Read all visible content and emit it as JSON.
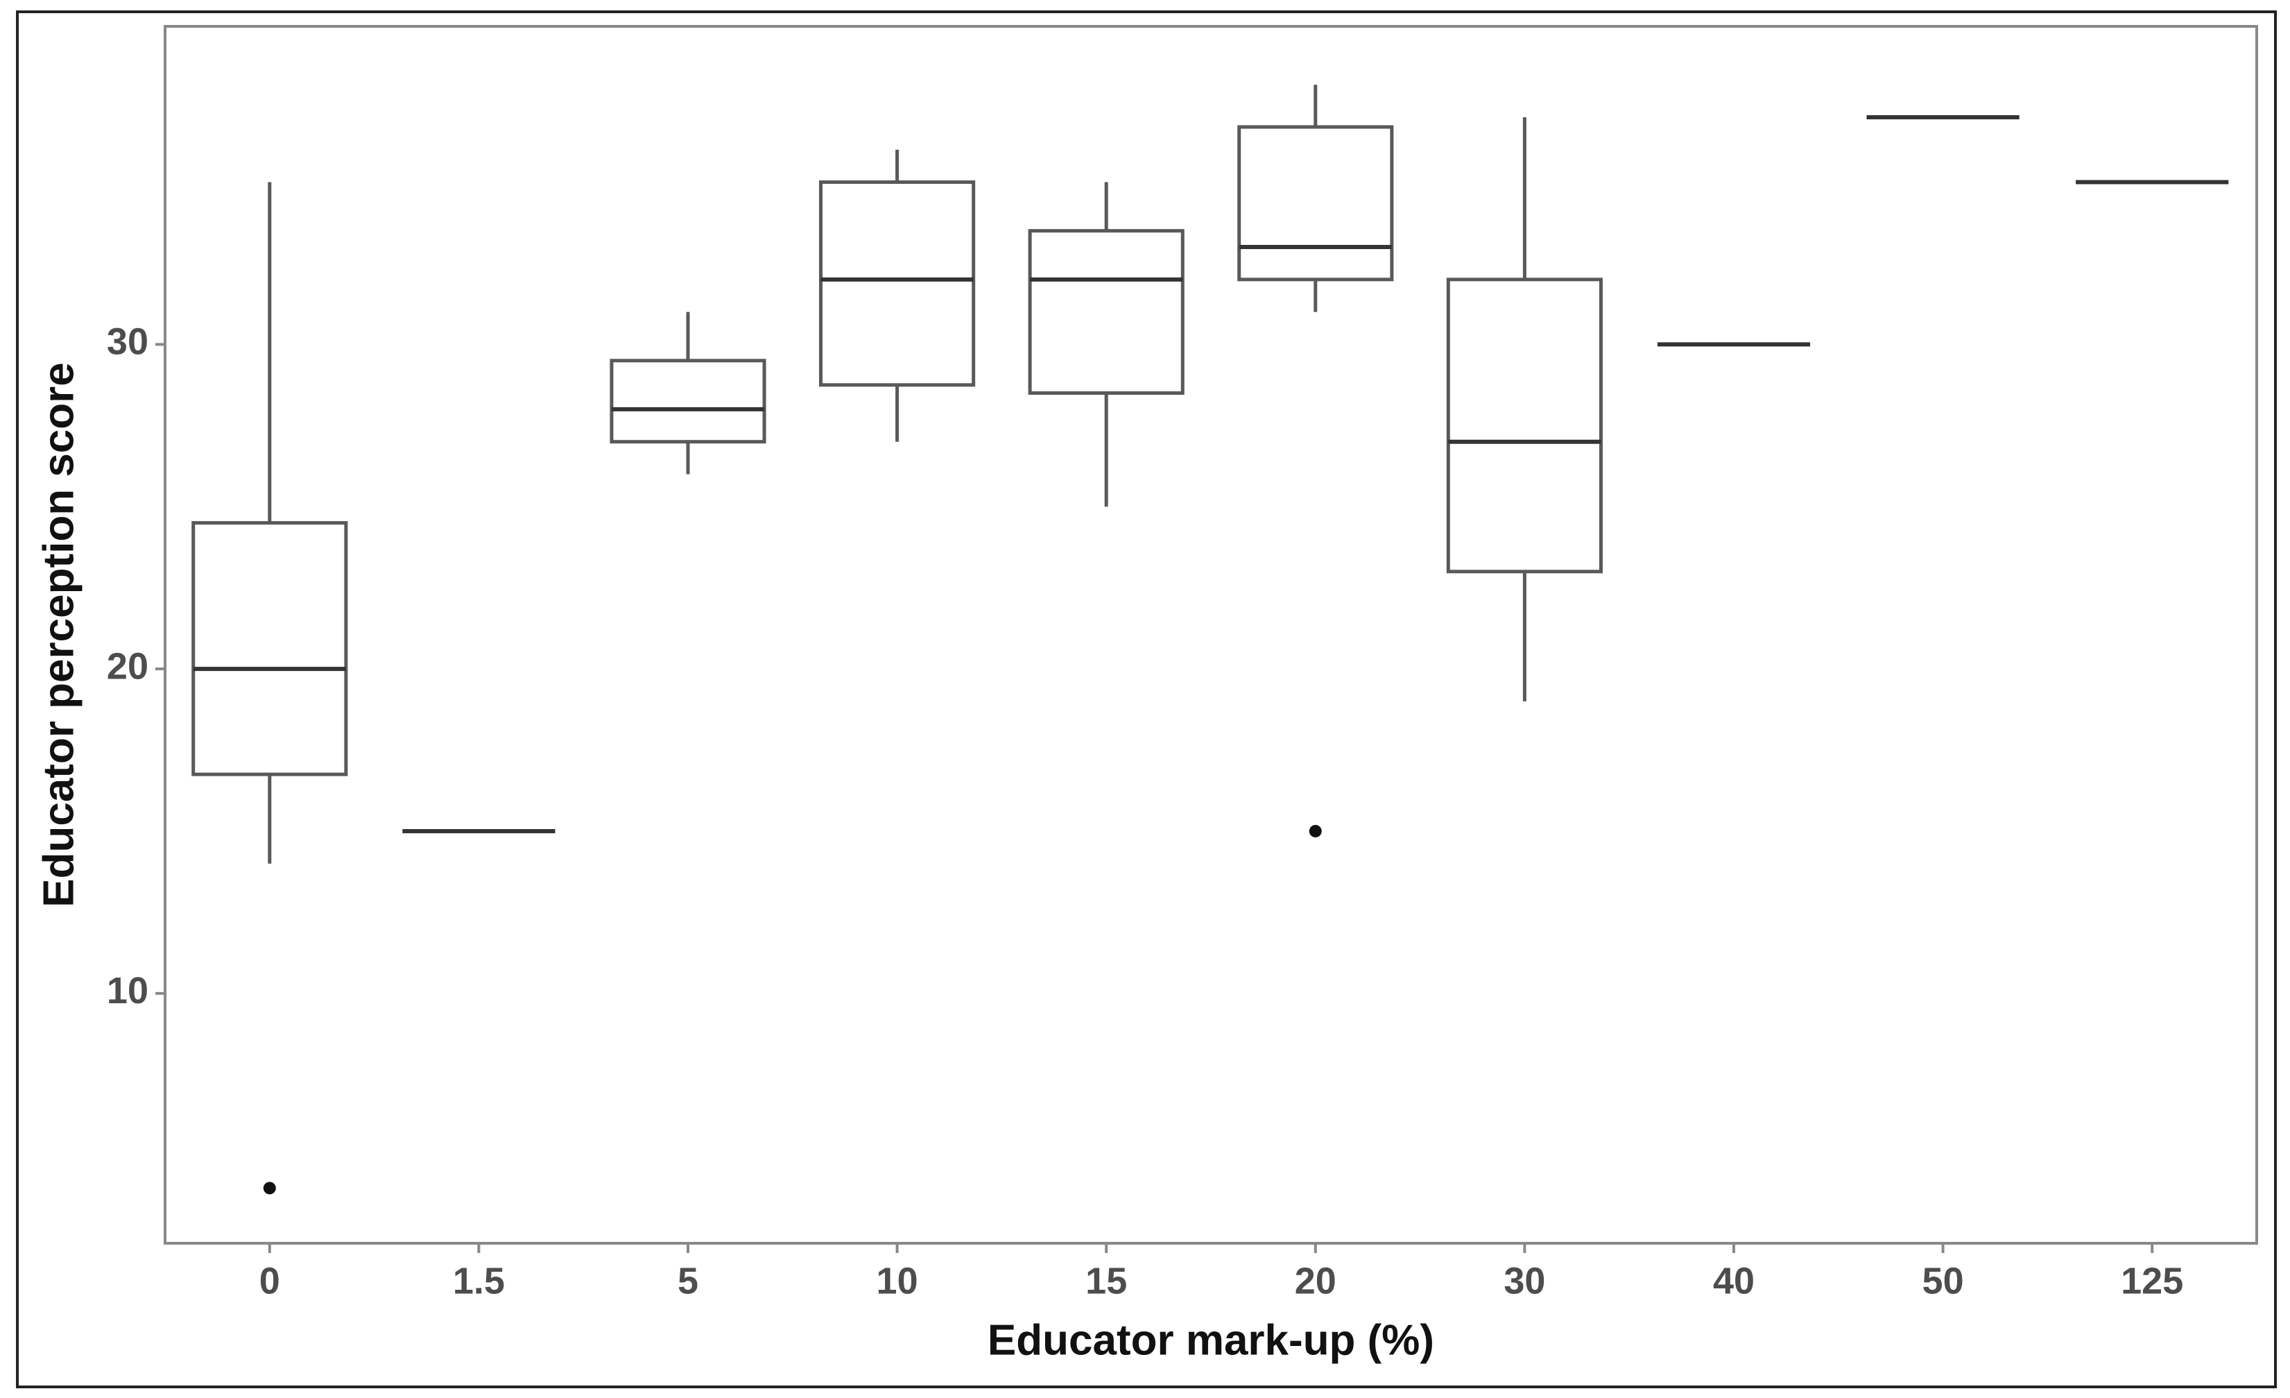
{
  "chart_data": {
    "type": "boxplot",
    "x_label": "Educator mark-up (%)",
    "y_label": "Educator perception score",
    "categories": [
      "0",
      "1.5",
      "5",
      "10",
      "15",
      "20",
      "30",
      "40",
      "50",
      "125"
    ],
    "boxes": [
      {
        "min": 14,
        "q1": 16.75,
        "median": 20,
        "q3": 24.5,
        "max": 35,
        "outliers": [
          4
        ]
      },
      {
        "min": 15,
        "q1": 15,
        "median": 15,
        "q3": 15,
        "max": 15,
        "outliers": []
      },
      {
        "min": 26,
        "q1": 27,
        "median": 28,
        "q3": 29.5,
        "max": 31,
        "outliers": []
      },
      {
        "min": 27,
        "q1": 28.75,
        "median": 32,
        "q3": 35,
        "max": 36,
        "outliers": []
      },
      {
        "min": 25,
        "q1": 28.5,
        "median": 32,
        "q3": 33.5,
        "max": 35,
        "outliers": []
      },
      {
        "min": 31,
        "q1": 32,
        "median": 33,
        "q3": 36.7,
        "max": 38,
        "outliers": [
          15
        ]
      },
      {
        "min": 19,
        "q1": 23,
        "median": 27,
        "q3": 32,
        "max": 37,
        "outliers": []
      },
      {
        "min": 30,
        "q1": 30,
        "median": 30,
        "q3": 30,
        "max": 30,
        "outliers": []
      },
      {
        "min": 37,
        "q1": 37,
        "median": 37,
        "q3": 37,
        "max": 37,
        "outliers": []
      },
      {
        "min": 35,
        "q1": 35,
        "median": 35,
        "q3": 35,
        "max": 35,
        "outliers": []
      }
    ],
    "color": "#595959",
    "median_color": "#333333",
    "ylim": [
      2.3,
      39.8
    ],
    "yticks": [
      10,
      20,
      30
    ],
    "grid": false
  }
}
